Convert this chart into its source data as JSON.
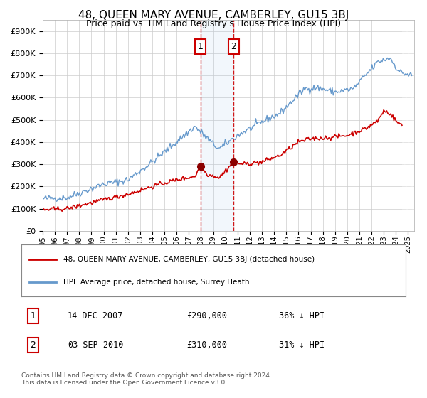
{
  "title": "48, QUEEN MARY AVENUE, CAMBERLEY, GU15 3BJ",
  "subtitle": "Price paid vs. HM Land Registry's House Price Index (HPI)",
  "legend_line1": "48, QUEEN MARY AVENUE, CAMBERLEY, GU15 3BJ (detached house)",
  "legend_line2": "HPI: Average price, detached house, Surrey Heath",
  "transaction1_date": "14-DEC-2007",
  "transaction1_price": 290000,
  "transaction1_hpi": "36% ↓ HPI",
  "transaction2_date": "03-SEP-2010",
  "transaction2_price": 310000,
  "transaction2_hpi": "31% ↓ HPI",
  "footnote": "Contains HM Land Registry data © Crown copyright and database right 2024.\nThis data is licensed under the Open Government Licence v3.0.",
  "hpi_color": "#6699cc",
  "paid_color": "#cc0000",
  "background_color": "#ffffff",
  "grid_color": "#cccccc",
  "ylim": [
    0,
    950000
  ],
  "xlim_start": 1995.0,
  "xlim_end": 2025.5,
  "transaction1_x": 2007.95,
  "transaction2_x": 2010.67,
  "hatch_start": 2024.5,
  "hpi_key_years": [
    1995,
    1997,
    2000,
    2002,
    2004,
    2007.5,
    2009.0,
    2009.5,
    2011,
    2013,
    2014.5,
    2016.5,
    2017.5,
    2019,
    2020.5,
    2022.5,
    2023.5,
    2024.3,
    2025.3
  ],
  "hpi_key_vals": [
    145000,
    150000,
    210000,
    230000,
    310000,
    470000,
    390000,
    370000,
    430000,
    490000,
    530000,
    640000,
    645000,
    625000,
    640000,
    760000,
    780000,
    715000,
    700000
  ],
  "paid_key_years": [
    1995,
    1997,
    2000,
    2002,
    2004,
    2006,
    2007.5,
    2007.95,
    2008.5,
    2009.5,
    2010.5,
    2010.67,
    2011.5,
    2013,
    2014.5,
    2016,
    2017,
    2018.5,
    2020,
    2021.5,
    2022.5,
    2023.0,
    2023.5,
    2024.0,
    2024.5
  ],
  "paid_key_vals": [
    95000,
    100000,
    140000,
    165000,
    200000,
    230000,
    245000,
    290000,
    255000,
    240000,
    300000,
    310000,
    300000,
    310000,
    340000,
    400000,
    415000,
    420000,
    430000,
    460000,
    495000,
    540000,
    530000,
    495000,
    475000
  ]
}
